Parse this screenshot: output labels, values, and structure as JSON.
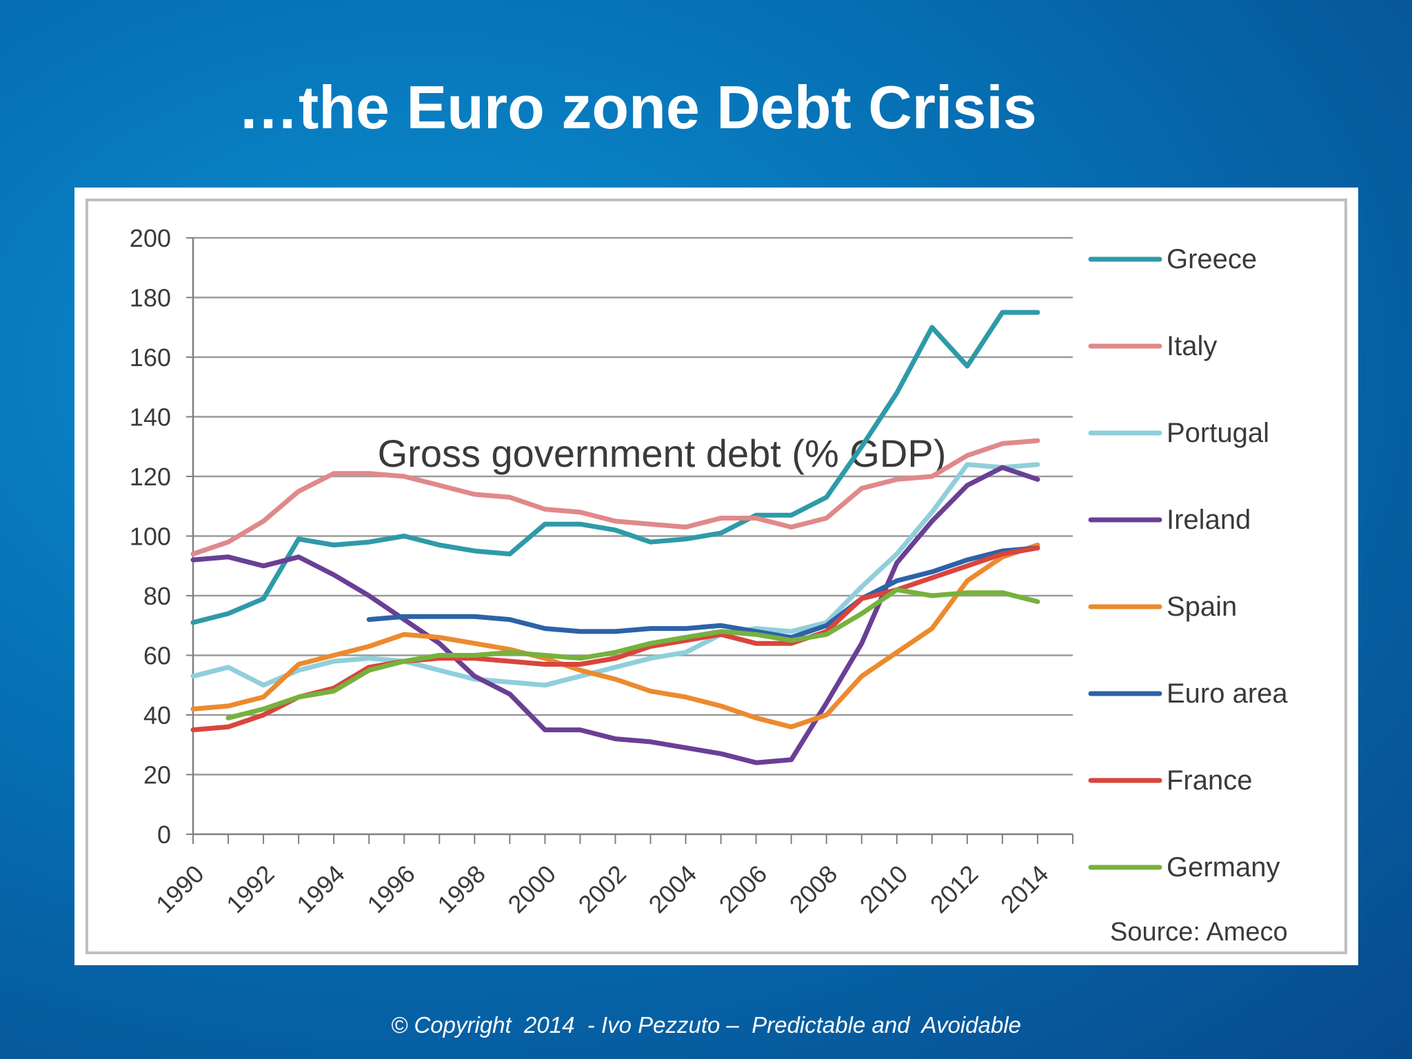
{
  "slide": {
    "title": "…the Euro zone Debt Crisis",
    "footer": "© Copyright  2014  - Ivo Pezzuto –  Predictable and  Avoidable"
  },
  "chart_data": {
    "type": "line",
    "title": "Gross government debt (% GDP)",
    "source": "Source: Ameco",
    "ylim": [
      0,
      200
    ],
    "yticks": [
      0,
      20,
      40,
      60,
      80,
      100,
      120,
      140,
      160,
      180,
      200
    ],
    "xlim": [
      1990,
      2015
    ],
    "xticks": [
      1990,
      1992,
      1994,
      1996,
      1998,
      2000,
      2002,
      2004,
      2006,
      2008,
      2010,
      2012,
      2014
    ],
    "grid": true,
    "legend_position": "right",
    "series": [
      {
        "name": "Greece",
        "color": "#2e9aa8",
        "x": [
          1990,
          1991,
          1992,
          1993,
          1994,
          1995,
          1996,
          1997,
          1998,
          1999,
          2000,
          2001,
          2002,
          2003,
          2004,
          2005,
          2006,
          2007,
          2008,
          2009,
          2010,
          2011,
          2012,
          2013,
          2014
        ],
        "y": [
          71,
          74,
          79,
          99,
          97,
          98,
          100,
          97,
          95,
          94,
          104,
          104,
          102,
          98,
          99,
          101,
          107,
          107,
          113,
          130,
          148,
          170,
          157,
          175,
          175
        ]
      },
      {
        "name": "Italy",
        "color": "#e0898a",
        "x": [
          1990,
          1991,
          1992,
          1993,
          1994,
          1995,
          1996,
          1997,
          1998,
          1999,
          2000,
          2001,
          2002,
          2003,
          2004,
          2005,
          2006,
          2007,
          2008,
          2009,
          2010,
          2011,
          2012,
          2013,
          2014
        ],
        "y": [
          94,
          98,
          105,
          115,
          121,
          121,
          120,
          117,
          114,
          113,
          109,
          108,
          105,
          104,
          103,
          106,
          106,
          103,
          106,
          116,
          119,
          120,
          127,
          131,
          132
        ]
      },
      {
        "name": "Portugal",
        "color": "#8fcfdb",
        "x": [
          1990,
          1991,
          1992,
          1993,
          1994,
          1995,
          1996,
          1997,
          1998,
          1999,
          2000,
          2001,
          2002,
          2003,
          2004,
          2005,
          2006,
          2007,
          2008,
          2009,
          2010,
          2011,
          2012,
          2013,
          2014
        ],
        "y": [
          53,
          56,
          50,
          55,
          58,
          59,
          58,
          55,
          52,
          51,
          50,
          53,
          56,
          59,
          61,
          67,
          69,
          68,
          71,
          83,
          94,
          108,
          124,
          123,
          124
        ]
      },
      {
        "name": "Ireland",
        "color": "#6a3f95",
        "x": [
          1990,
          1991,
          1992,
          1993,
          1994,
          1995,
          1996,
          1997,
          1998,
          1999,
          2000,
          2001,
          2002,
          2003,
          2004,
          2005,
          2006,
          2007,
          2008,
          2009,
          2010,
          2011,
          2012,
          2013,
          2014
        ],
        "y": [
          92,
          93,
          90,
          93,
          87,
          80,
          72,
          64,
          53,
          47,
          35,
          35,
          32,
          31,
          29,
          27,
          24,
          25,
          44,
          64,
          91,
          105,
          117,
          123,
          119
        ]
      },
      {
        "name": "Spain",
        "color": "#ec8a2e",
        "x": [
          1990,
          1991,
          1992,
          1993,
          1994,
          1995,
          1996,
          1997,
          1998,
          1999,
          2000,
          2001,
          2002,
          2003,
          2004,
          2005,
          2006,
          2007,
          2008,
          2009,
          2010,
          2011,
          2012,
          2013,
          2014
        ],
        "y": [
          42,
          43,
          46,
          57,
          60,
          63,
          67,
          66,
          64,
          62,
          59,
          55,
          52,
          48,
          46,
          43,
          39,
          36,
          40,
          53,
          61,
          69,
          85,
          93,
          97
        ]
      },
      {
        "name": "Euro area",
        "color": "#2d62a8",
        "x": [
          1995,
          1996,
          1997,
          1998,
          1999,
          2000,
          2001,
          2002,
          2003,
          2004,
          2005,
          2006,
          2007,
          2008,
          2009,
          2010,
          2011,
          2012,
          2013,
          2014
        ],
        "y": [
          72,
          73,
          73,
          73,
          72,
          69,
          68,
          68,
          69,
          69,
          70,
          68,
          66,
          70,
          79,
          85,
          88,
          92,
          95,
          96
        ]
      },
      {
        "name": "France",
        "color": "#d9453c",
        "x": [
          1990,
          1991,
          1992,
          1993,
          1994,
          1995,
          1996,
          1997,
          1998,
          1999,
          2000,
          2001,
          2002,
          2003,
          2004,
          2005,
          2006,
          2007,
          2008,
          2009,
          2010,
          2011,
          2012,
          2013,
          2014
        ],
        "y": [
          35,
          36,
          40,
          46,
          49,
          56,
          58,
          59,
          59,
          58,
          57,
          57,
          59,
          63,
          65,
          67,
          64,
          64,
          68,
          79,
          82,
          86,
          90,
          94,
          96
        ]
      },
      {
        "name": "Germany",
        "color": "#77b13e",
        "x": [
          1991,
          1992,
          1993,
          1994,
          1995,
          1996,
          1997,
          1998,
          1999,
          2000,
          2001,
          2002,
          2003,
          2004,
          2005,
          2006,
          2007,
          2008,
          2009,
          2010,
          2011,
          2012,
          2013,
          2014
        ],
        "y": [
          39,
          42,
          46,
          48,
          55,
          58,
          60,
          60,
          61,
          60,
          59,
          61,
          64,
          66,
          68,
          67,
          65,
          67,
          74,
          82,
          80,
          81,
          81,
          78
        ]
      }
    ]
  }
}
